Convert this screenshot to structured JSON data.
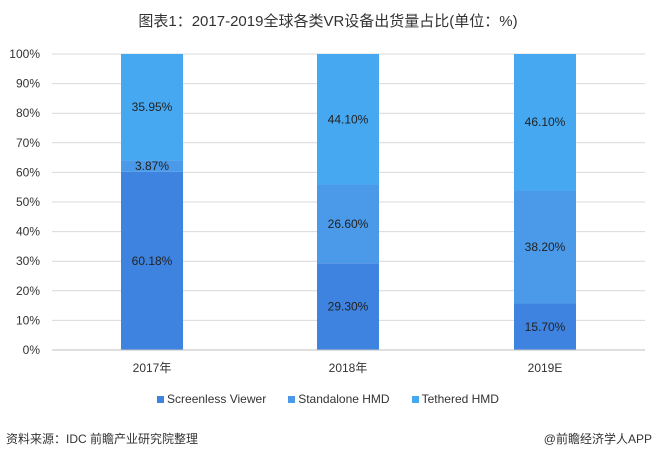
{
  "chart_data": {
    "type": "bar",
    "stacked": true,
    "title": "图表1：2017-2019全球各类VR设备出货量占比(单位：%)",
    "categories": [
      "2017年",
      "2018年",
      "2019E"
    ],
    "series": [
      {
        "name": "Screenless Viewer",
        "values": [
          60.18,
          29.3,
          15.7
        ],
        "labels": [
          "60.18%",
          "29.30%",
          "15.70%"
        ],
        "color": "#3F83E1"
      },
      {
        "name": "Standalone HMD",
        "values": [
          3.87,
          26.6,
          38.2
        ],
        "labels": [
          "3.87%",
          "26.60%",
          "38.20%"
        ],
        "color": "#4A9AE9"
      },
      {
        "name": "Tethered HMD",
        "values": [
          35.95,
          44.1,
          46.1
        ],
        "labels": [
          "35.95%",
          "44.10%",
          "46.10%"
        ],
        "color": "#46A8F1"
      }
    ],
    "yticks": [
      "0%",
      "10%",
      "20%",
      "30%",
      "40%",
      "50%",
      "60%",
      "70%",
      "80%",
      "90%",
      "100%"
    ],
    "ylim": [
      0,
      100
    ],
    "xlabel": "",
    "ylabel": "",
    "grid": true,
    "legend": "bottom"
  },
  "footer": {
    "source": "资料来源：IDC 前瞻产业研究院整理",
    "credit": "@前瞻经济学人APP"
  }
}
